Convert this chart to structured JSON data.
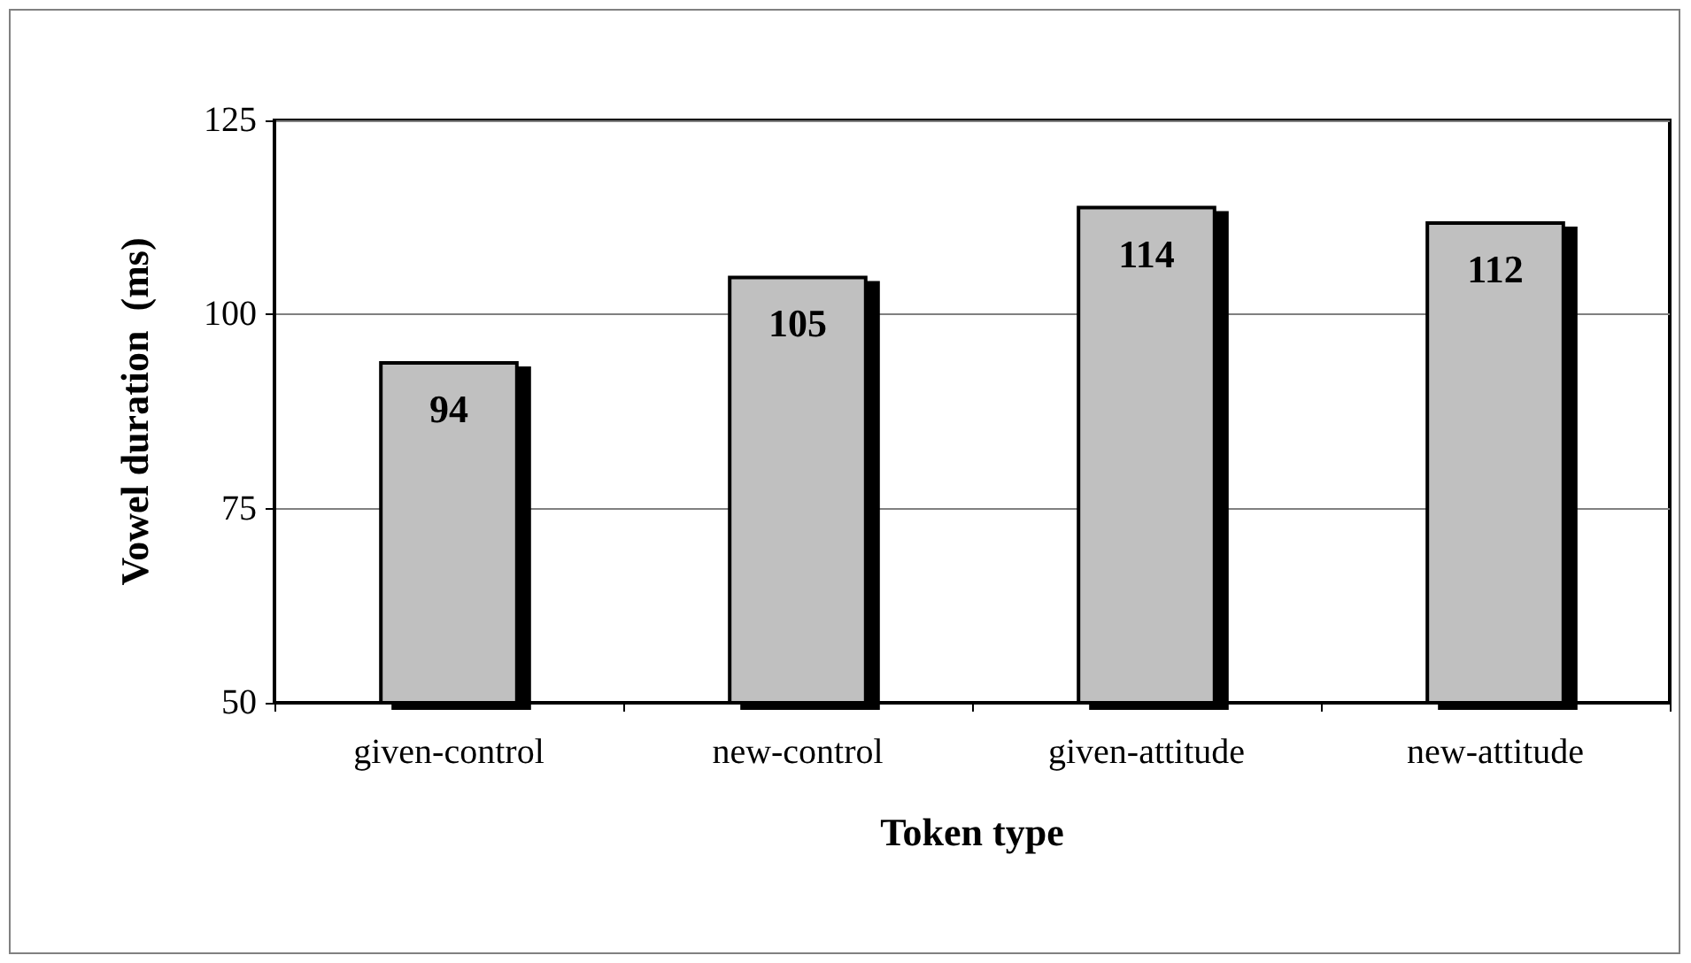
{
  "chart_data": {
    "type": "bar",
    "xlabel": "Token type",
    "ylabel": "Vowel duration  (ms)",
    "categories": [
      "given-control",
      "new-control",
      "given-attitude",
      "new-attitude"
    ],
    "values": [
      94,
      105,
      114,
      112
    ],
    "color": "#c0c0c0",
    "data_labels": true,
    "ylim": [
      50,
      125
    ],
    "yticks": [
      50,
      75,
      100,
      125
    ],
    "grid": "y"
  }
}
